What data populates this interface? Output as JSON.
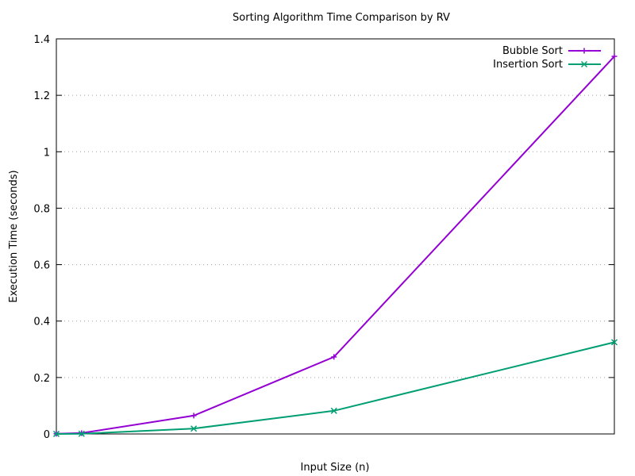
{
  "chart_data": {
    "type": "line",
    "title": "Sorting Algorithm Time Comparison by RV",
    "xlabel": "Input Size (n)",
    "ylabel": "Execution Time (seconds)",
    "ylim": [
      0,
      1.4
    ],
    "xlim": [
      100,
      20000
    ],
    "y_ticks": [
      "0",
      "0.2",
      "0.4",
      "0.6",
      "0.8",
      "1",
      "1.2",
      "1.4"
    ],
    "grid": "horizontal-dotted",
    "legend_position": "top-right",
    "x": [
      100,
      1000,
      5000,
      10000,
      20000
    ],
    "series": [
      {
        "name": "Bubble Sort",
        "color": "#9400D3",
        "marker": "plus",
        "values": [
          0.0005,
          0.003,
          0.065,
          0.273,
          1.338
        ]
      },
      {
        "name": "Insertion Sort",
        "color": "#009E73",
        "marker": "cross",
        "values": [
          0.0001,
          0.0007,
          0.019,
          0.082,
          0.325
        ]
      }
    ]
  }
}
